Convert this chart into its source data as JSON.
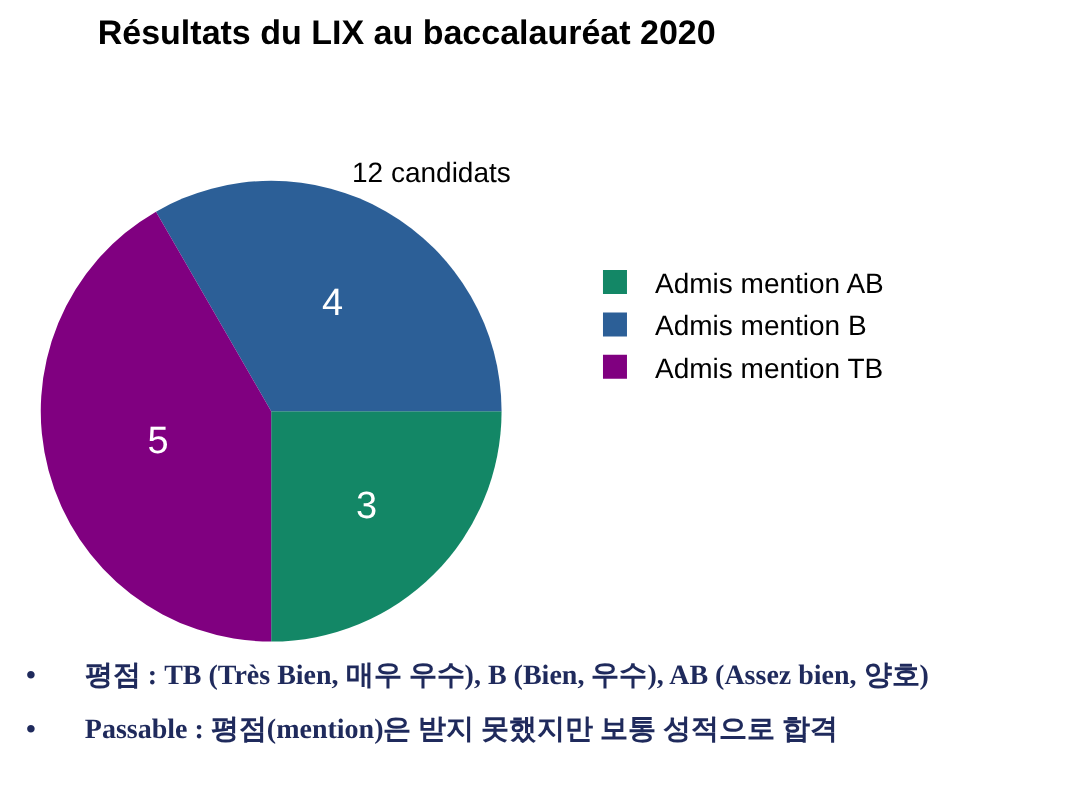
{
  "chart_data": {
    "type": "pie",
    "title": "Résultats du LIX au baccalauréat 2020",
    "subtitle": "12 candidats",
    "categories": [
      "Admis mention AB",
      "Admis mention B",
      "Admis mention TB"
    ],
    "values": [
      3,
      4,
      5
    ],
    "colors": [
      "#138766",
      "#2c5f97",
      "#800080"
    ],
    "data_labels": true,
    "legend": "right",
    "annotations": [
      "•       평점 : TB (Très Bien, 매우 우수), B (Bien, 우수), AB (Assez bien, 양호)",
      "•       Passable : 평점(mention)은 받지 못했지만 보통 성적으로 합격"
    ]
  }
}
